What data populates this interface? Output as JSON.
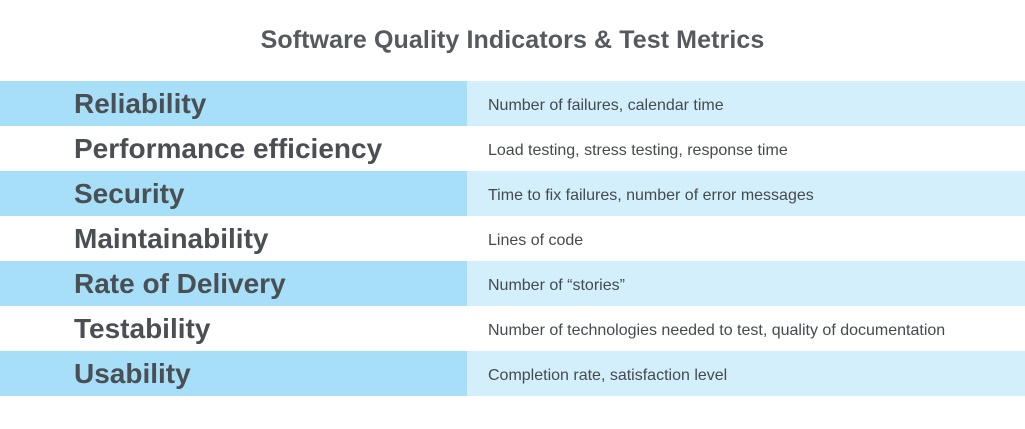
{
  "title": "Software Quality Indicators & Test Metrics",
  "colors": {
    "shaded_left": "#a7dff8",
    "shaded_right": "#d2effb",
    "plain": "#ffffff",
    "title_text": "#555a5e",
    "metric_text": "#4a4f54"
  },
  "rows": [
    {
      "metric": "Reliability",
      "measures": "Number of failures, calendar time",
      "shaded": true
    },
    {
      "metric": "Performance efficiency",
      "measures": "Load testing, stress testing, response time",
      "shaded": false
    },
    {
      "metric": "Security",
      "measures": "Time to fix failures, number of error messages",
      "shaded": true
    },
    {
      "metric": "Maintainability",
      "measures": "Lines of code",
      "shaded": false
    },
    {
      "metric": "Rate of Delivery",
      "measures": "Number of “stories”",
      "shaded": true
    },
    {
      "metric": "Testability",
      "measures": "Number of technologies needed to test, quality of documentation",
      "shaded": false
    },
    {
      "metric": "Usability",
      "measures": "Completion rate, satisfaction level",
      "shaded": true
    }
  ]
}
